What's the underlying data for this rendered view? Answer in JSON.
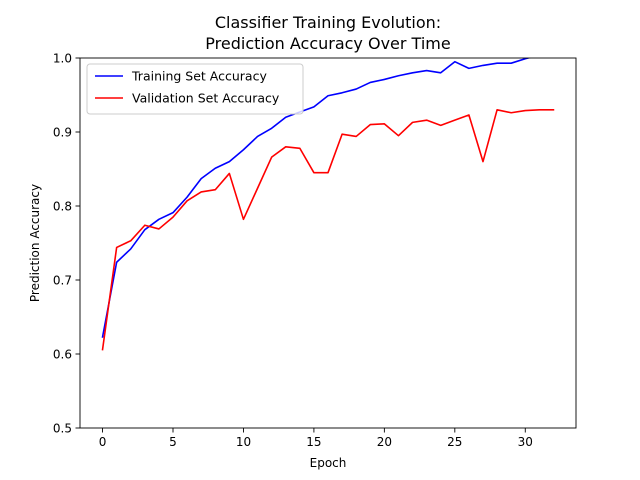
{
  "chart_data": {
    "type": "line",
    "title_lines": [
      "Classifier Training Evolution:",
      "Prediction Accuracy Over Time"
    ],
    "xlabel": "Epoch",
    "ylabel": "Prediction Accuracy",
    "xlim": [
      -1.6,
      33.6
    ],
    "ylim": [
      0.5,
      1.0
    ],
    "xticks": [
      0,
      5,
      10,
      15,
      20,
      25,
      30
    ],
    "yticks": [
      0.5,
      0.6,
      0.7,
      0.8,
      0.9,
      1.0
    ],
    "xtick_labels": [
      "0",
      "5",
      "10",
      "15",
      "20",
      "25",
      "30"
    ],
    "ytick_labels": [
      "0.5",
      "0.6",
      "0.7",
      "0.8",
      "0.9",
      "1.0"
    ],
    "grid": false,
    "legend_position": "upper-left",
    "series": [
      {
        "name": "Training Set Accuracy",
        "color": "#0000ff",
        "x": [
          0,
          1,
          2,
          3,
          4,
          5,
          6,
          7,
          8,
          9,
          10,
          11,
          12,
          13,
          14,
          15,
          16,
          17,
          18,
          19,
          20,
          21,
          22,
          23,
          24,
          25,
          26,
          27,
          28,
          29,
          30,
          31,
          32
        ],
        "values": [
          0.623,
          0.724,
          0.742,
          0.768,
          0.782,
          0.791,
          0.812,
          0.837,
          0.851,
          0.86,
          0.876,
          0.894,
          0.905,
          0.92,
          0.927,
          0.934,
          0.949,
          0.953,
          0.958,
          0.967,
          0.971,
          0.976,
          0.98,
          0.983,
          0.98,
          0.995,
          0.986,
          0.99,
          0.993,
          0.993,
          0.999,
          1.004,
          1.008
        ]
      },
      {
        "name": "Validation Set Accuracy",
        "color": "#ff0000",
        "x": [
          0,
          1,
          2,
          3,
          4,
          5,
          6,
          7,
          8,
          9,
          10,
          11,
          12,
          13,
          14,
          15,
          16,
          17,
          18,
          19,
          20,
          21,
          22,
          23,
          24,
          25,
          26,
          27,
          28,
          29,
          30,
          31,
          32
        ],
        "values": [
          0.606,
          0.744,
          0.753,
          0.774,
          0.769,
          0.785,
          0.807,
          0.819,
          0.822,
          0.844,
          0.782,
          0.824,
          0.866,
          0.88,
          0.878,
          0.845,
          0.845,
          0.897,
          0.894,
          0.91,
          0.911,
          0.895,
          0.913,
          0.916,
          0.909,
          0.916,
          0.923,
          0.86,
          0.93,
          0.926,
          0.929,
          0.93,
          0.93
        ]
      }
    ]
  }
}
